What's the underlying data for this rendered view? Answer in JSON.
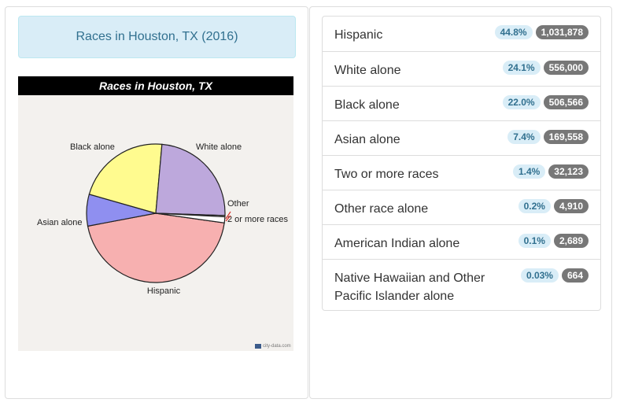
{
  "left": {
    "title": "Races in Houston, TX (2016)"
  },
  "chart_data": {
    "type": "pie",
    "title": "Races in Houston, TX",
    "slices": [
      {
        "label": "Hispanic",
        "value": 44.8,
        "color": "#f7b0b0"
      },
      {
        "label": "Asian alone",
        "value": 7.4,
        "color": "#8f8ff0"
      },
      {
        "label": "Black alone",
        "value": 22.0,
        "color": "#fffb8f"
      },
      {
        "label": "White alone",
        "value": 24.1,
        "color": "#bda8dc"
      },
      {
        "label": "Other",
        "value": 0.3,
        "color": "#ffffff"
      },
      {
        "label": "2 or more races",
        "value": 1.4,
        "color": "#ffffff"
      }
    ],
    "watermark": "city-data.com"
  },
  "races": [
    {
      "label": "Hispanic",
      "pct": "44.8%",
      "count": "1,031,878"
    },
    {
      "label": "White alone",
      "pct": "24.1%",
      "count": "556,000"
    },
    {
      "label": "Black alone",
      "pct": "22.0%",
      "count": "506,566"
    },
    {
      "label": "Asian alone",
      "pct": "7.4%",
      "count": "169,558"
    },
    {
      "label": "Two or more races",
      "pct": "1.4%",
      "count": "32,123"
    },
    {
      "label": "Other race alone",
      "pct": "0.2%",
      "count": "4,910"
    },
    {
      "label": "American Indian alone",
      "pct": "0.1%",
      "count": "2,689"
    },
    {
      "label": "Native Hawaiian and Other Pacific Islander alone",
      "pct": "0.03%",
      "count": "664"
    }
  ]
}
